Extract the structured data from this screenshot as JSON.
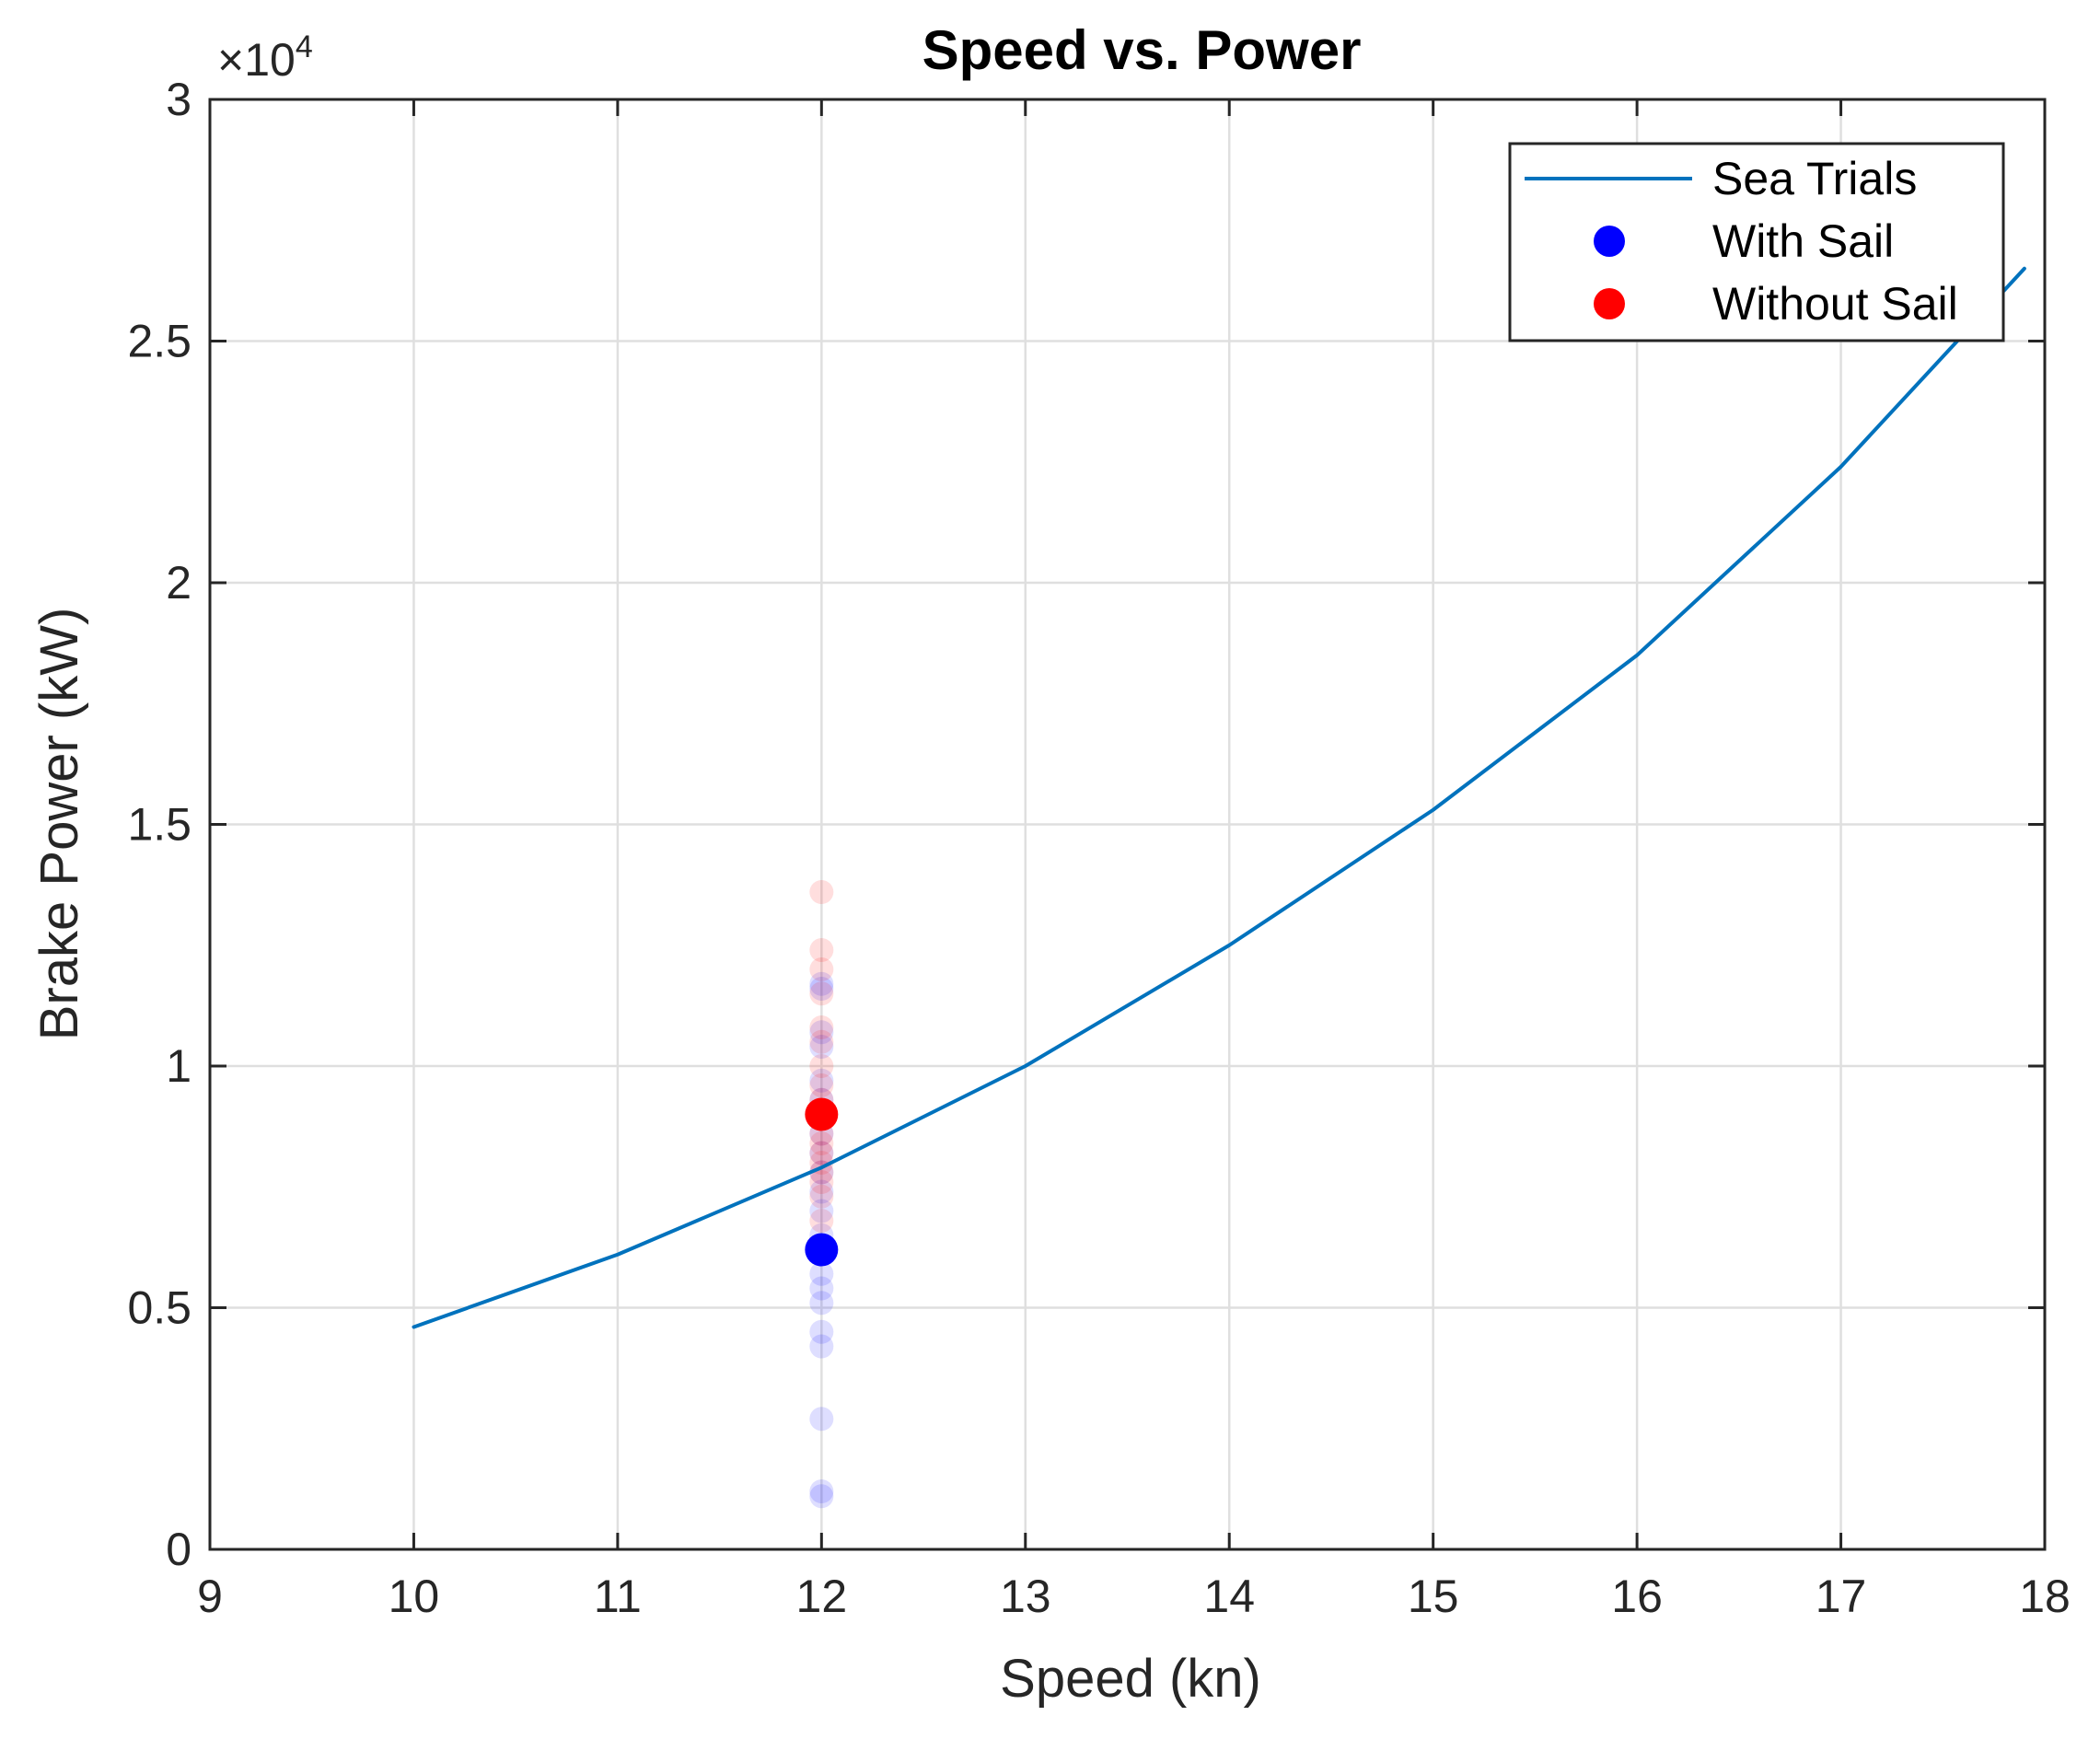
{
  "chart_data": {
    "type": "scatter",
    "title": "Speed vs. Power",
    "xlabel": "Speed (kn)",
    "ylabel": "Brake Power (kW)",
    "xlim": [
      9,
      18
    ],
    "ylim": [
      0,
      30000
    ],
    "y_exponent_base": "×10",
    "y_exponent_power": "4",
    "xticks": [
      9,
      10,
      11,
      12,
      13,
      14,
      15,
      16,
      17,
      18
    ],
    "xtick_labels": [
      "9",
      "10",
      "11",
      "12",
      "13",
      "14",
      "15",
      "16",
      "17",
      "18"
    ],
    "yticks": [
      0,
      5000,
      10000,
      15000,
      20000,
      25000,
      30000
    ],
    "ytick_labels": [
      "0",
      "0.5",
      "1",
      "1.5",
      "2",
      "2.5",
      "3"
    ],
    "grid": true,
    "legend_position": "top-right",
    "series": [
      {
        "name": "Sea Trials",
        "kind": "line",
        "color": "#0072bd",
        "x": [
          10,
          11,
          12,
          13,
          14,
          15,
          16,
          17,
          17.9
        ],
        "y": [
          4600,
          6100,
          7900,
          10000,
          12500,
          15300,
          18500,
          22400,
          26500
        ]
      },
      {
        "name": "With Sail",
        "kind": "marker",
        "color": "#0000ff",
        "x": [
          12
        ],
        "y": [
          6200
        ],
        "scatter_color": "#0000ff",
        "scatter_x": [
          12,
          12,
          12,
          12,
          12,
          12,
          12,
          12,
          12,
          12,
          12,
          12,
          12,
          12,
          12,
          12,
          12,
          12,
          12,
          12
        ],
        "scatter_y": [
          1100,
          1200,
          2700,
          4200,
          4500,
          5100,
          5400,
          5700,
          6500,
          7000,
          7400,
          7800,
          8200,
          8600,
          9300,
          9700,
          10400,
          10700,
          11600,
          11700
        ]
      },
      {
        "name": "Without Sail",
        "kind": "marker",
        "color": "#ff0000",
        "x": [
          12
        ],
        "y": [
          9000
        ],
        "scatter_color": "#ff0000",
        "scatter_x": [
          12,
          12,
          12,
          12,
          12,
          12,
          12,
          12,
          12,
          12,
          12,
          12,
          12,
          12,
          12,
          12,
          12,
          12
        ],
        "scatter_y": [
          6800,
          7300,
          7600,
          7800,
          8000,
          8200,
          8400,
          8600,
          9000,
          9300,
          9600,
          10000,
          10500,
          10800,
          11500,
          12000,
          12400,
          13600
        ]
      }
    ]
  }
}
